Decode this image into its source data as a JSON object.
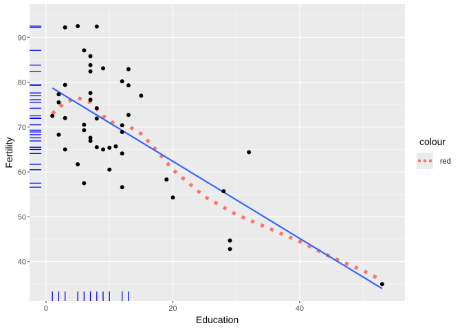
{
  "chart_data": {
    "type": "scatter",
    "title": "",
    "xlabel": "Education",
    "ylabel": "Fertility",
    "xlim": [
      -2.6,
      56.6
    ],
    "ylim": [
      31.2,
      97.4
    ],
    "x_ticks": [
      0,
      20,
      40
    ],
    "y_ticks": [
      40,
      50,
      60,
      70,
      80,
      90
    ],
    "grid": true,
    "legend": {
      "title": "colour",
      "placement": "right",
      "entries": [
        {
          "label": "red",
          "color": "#F8766D"
        }
      ]
    },
    "colors": {
      "points": "#000000",
      "lm_line": "#3366FF",
      "smooth_line": "#F8766D",
      "rug": "#0000FF",
      "panel": "#EBEBEB",
      "grid": "#FFFFFF"
    },
    "points": [
      {
        "x": 1,
        "y": 72.5
      },
      {
        "x": 2,
        "y": 68.3
      },
      {
        "x": 2,
        "y": 75.5
      },
      {
        "x": 2,
        "y": 77.3
      },
      {
        "x": 3,
        "y": 92.2
      },
      {
        "x": 3,
        "y": 79.4
      },
      {
        "x": 3,
        "y": 72.0
      },
      {
        "x": 3,
        "y": 65.0
      },
      {
        "x": 5,
        "y": 92.5
      },
      {
        "x": 5,
        "y": 61.7
      },
      {
        "x": 6,
        "y": 87.1
      },
      {
        "x": 6,
        "y": 70.5
      },
      {
        "x": 6,
        "y": 69.3
      },
      {
        "x": 6,
        "y": 57.5
      },
      {
        "x": 7,
        "y": 85.8
      },
      {
        "x": 7,
        "y": 83.8
      },
      {
        "x": 7,
        "y": 82.4
      },
      {
        "x": 7,
        "y": 77.6
      },
      {
        "x": 7,
        "y": 76.1
      },
      {
        "x": 7,
        "y": 67.6
      },
      {
        "x": 7,
        "y": 66.9
      },
      {
        "x": 8,
        "y": 92.4
      },
      {
        "x": 8,
        "y": 74.2
      },
      {
        "x": 8,
        "y": 71.9
      },
      {
        "x": 8,
        "y": 65.5
      },
      {
        "x": 9,
        "y": 83.1
      },
      {
        "x": 9,
        "y": 65.0
      },
      {
        "x": 10,
        "y": 65.4
      },
      {
        "x": 10,
        "y": 60.5
      },
      {
        "x": 11,
        "y": 65.7
      },
      {
        "x": 12,
        "y": 80.2
      },
      {
        "x": 12,
        "y": 70.4
      },
      {
        "x": 12,
        "y": 68.9
      },
      {
        "x": 12,
        "y": 64.1
      },
      {
        "x": 12,
        "y": 56.6
      },
      {
        "x": 13,
        "y": 82.9
      },
      {
        "x": 13,
        "y": 79.3
      },
      {
        "x": 13,
        "y": 72.7
      },
      {
        "x": 15,
        "y": 77.0
      },
      {
        "x": 19,
        "y": 58.3
      },
      {
        "x": 20,
        "y": 54.3
      },
      {
        "x": 28,
        "y": 55.7
      },
      {
        "x": 29,
        "y": 44.7
      },
      {
        "x": 29,
        "y": 42.8
      },
      {
        "x": 32,
        "y": 64.4
      },
      {
        "x": 53,
        "y": 35.0
      }
    ],
    "lm_line": {
      "x": [
        1,
        53
      ],
      "y": [
        78.7,
        34.0
      ]
    },
    "smooth_line": {
      "x": [
        1,
        3,
        5,
        7,
        9,
        11,
        13,
        15,
        17,
        20,
        25,
        30,
        35,
        40,
        45,
        50,
        53
      ],
      "y": [
        73.0,
        75.5,
        76.5,
        75.5,
        72.5,
        70.5,
        70.2,
        68.5,
        65.5,
        60.5,
        54.5,
        50.5,
        47.5,
        44.5,
        41.0,
        38.0,
        35.8
      ]
    },
    "rug_x": [
      1,
      2,
      3,
      5,
      6,
      7,
      8,
      9,
      10,
      12,
      13
    ],
    "rug_y": [
      92.5,
      92.2,
      87.1,
      83.8,
      82.4,
      79.4,
      79.3,
      77.6,
      77.0,
      76.1,
      75.5,
      74.2,
      72.5,
      72.0,
      71.9,
      70.5,
      69.3,
      68.9,
      68.3,
      67.6,
      66.9,
      65.5,
      65.0,
      64.1,
      61.7,
      60.5,
      57.5,
      56.6
    ]
  }
}
